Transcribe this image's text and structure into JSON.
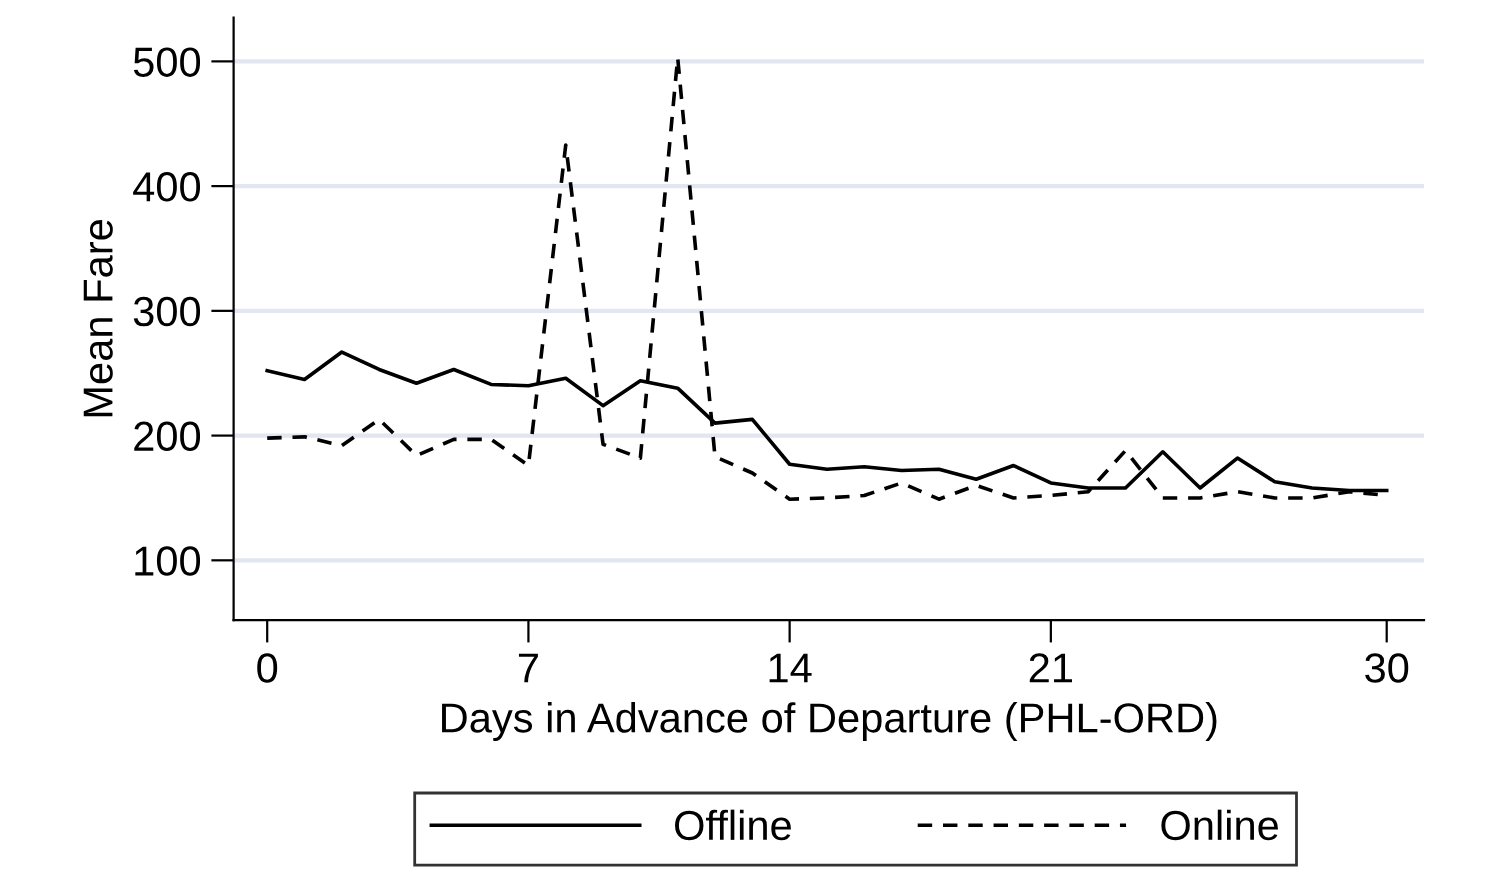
{
  "chart_data": {
    "type": "line",
    "xlabel": "Days in Advance of Departure (PHL-ORD)",
    "ylabel": "Mean Fare",
    "x": [
      0,
      1,
      2,
      3,
      4,
      5,
      6,
      7,
      8,
      9,
      10,
      11,
      12,
      13,
      14,
      15,
      16,
      17,
      18,
      19,
      20,
      21,
      22,
      23,
      24,
      25,
      26,
      27,
      28,
      29,
      30
    ],
    "series": [
      {
        "name": "Offline",
        "color": "#000000",
        "line_style": "solid",
        "values": [
          252,
          245,
          267,
          253,
          242,
          253,
          241,
          240,
          246,
          224,
          244,
          238,
          210,
          213,
          177,
          173,
          175,
          172,
          173,
          165,
          176,
          162,
          158,
          158,
          187,
          158,
          182,
          163,
          158,
          156,
          156
        ]
      },
      {
        "name": "Online",
        "color": "#000000",
        "line_style": "dashed",
        "values": [
          198,
          199,
          192,
          213,
          184,
          197,
          197,
          176,
          433,
          193,
          182,
          503,
          183,
          170,
          149,
          150,
          152,
          162,
          149,
          160,
          150,
          152,
          155,
          188,
          150,
          150,
          155,
          150,
          150,
          155,
          152
        ]
      }
    ],
    "xlim": [
      -0.9,
      31
    ],
    "xticks": [
      0,
      7,
      14,
      21,
      30
    ],
    "ylim": [
      52,
      535
    ],
    "yticks": [
      100,
      200,
      300,
      400,
      500
    ],
    "grid": "y",
    "legend": "bottom",
    "marker": "none"
  }
}
